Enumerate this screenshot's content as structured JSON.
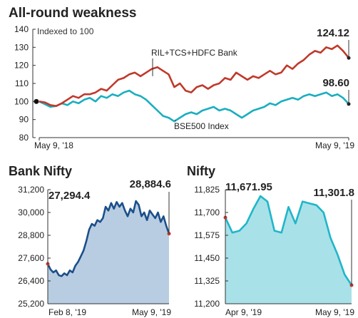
{
  "chart_data": [
    {
      "type": "line",
      "title": "All-round weakness",
      "ylabel": "Indexed to 100",
      "ylim": [
        80,
        140
      ],
      "yticks": [
        80,
        90,
        100,
        110,
        120,
        130,
        140
      ],
      "x_start_label": "May 9, '18",
      "x_end_label": "May 9, '19",
      "grid": false,
      "series": [
        {
          "name": "RIL+TCS+HDFC Bank",
          "color": "#c0392b",
          "last_label": "124.12",
          "values": [
            100,
            99.5,
            98,
            97.5,
            99,
            101,
            103,
            102,
            104,
            104,
            105,
            107,
            106,
            109,
            112,
            113,
            115,
            116,
            114,
            116,
            118,
            119,
            117,
            115,
            108,
            110,
            106,
            105,
            108,
            109,
            107,
            109,
            110,
            113,
            112,
            116,
            114,
            112,
            114,
            113,
            115,
            117,
            115,
            116,
            120,
            118,
            121,
            123,
            126,
            128,
            127,
            130,
            129,
            131,
            128,
            124.12
          ]
        },
        {
          "name": "BSE500 Index",
          "color": "#1aaebf",
          "last_label": "98.60",
          "values": [
            100,
            98.5,
            97,
            97.5,
            99,
            98,
            100,
            99,
            101,
            102,
            100,
            103,
            102,
            104,
            103,
            105,
            106,
            104,
            103,
            101,
            98,
            95,
            92,
            91,
            89,
            91,
            93,
            94,
            93,
            95,
            96,
            97,
            95,
            96,
            95,
            93,
            91,
            93,
            95,
            96,
            97,
            99,
            98,
            100,
            101,
            102,
            101,
            103,
            104,
            103,
            104,
            105,
            103,
            104,
            102,
            98.6
          ]
        }
      ]
    },
    {
      "type": "area",
      "title": "Bank Nifty",
      "ylim": [
        25200,
        31200
      ],
      "yticks": [
        25200,
        26400,
        27600,
        28800,
        30000,
        31200
      ],
      "ytick_labels": [
        "25,200",
        "26,400",
        "27,600",
        "28,800",
        "30,000",
        "31,200"
      ],
      "x_start_label": "Feb 8, '19",
      "x_end_label": "May 9, '19",
      "first_label": "27,294.4",
      "last_label": "28,884.6",
      "line_color": "#1b4f8a",
      "fill_color": "#b9cde2",
      "values": [
        27294.4,
        27000,
        26850,
        26950,
        26700,
        26650,
        26800,
        26700,
        26950,
        26850,
        27200,
        27400,
        27700,
        28000,
        28500,
        29100,
        29400,
        29300,
        29600,
        29500,
        29700,
        30300,
        30100,
        30500,
        30200,
        30550,
        30300,
        30500,
        30100,
        29800,
        30200,
        30000,
        30600,
        30400,
        29800,
        30000,
        29600,
        30100,
        29900,
        29700,
        30000,
        29500,
        29800,
        29300,
        28884.6
      ]
    },
    {
      "type": "area",
      "title": "Nifty",
      "ylim": [
        11200,
        11825
      ],
      "yticks": [
        11200,
        11325,
        11450,
        11575,
        11700,
        11825
      ],
      "ytick_labels": [
        "11,200",
        "11,325",
        "11,450",
        "11,575",
        "11,700",
        "11,825"
      ],
      "x_start_label": "Apr 9, '19",
      "x_end_label": "May 9, '19",
      "first_label": "11,671.95",
      "last_label": "11,301.8",
      "line_color": "#1fb6c9",
      "fill_color": "#a9e1e8",
      "values": [
        11671.95,
        11590,
        11600,
        11640,
        11720,
        11790,
        11760,
        11600,
        11590,
        11730,
        11640,
        11760,
        11750,
        11740,
        11700,
        11560,
        11470,
        11360,
        11301.8
      ]
    }
  ]
}
